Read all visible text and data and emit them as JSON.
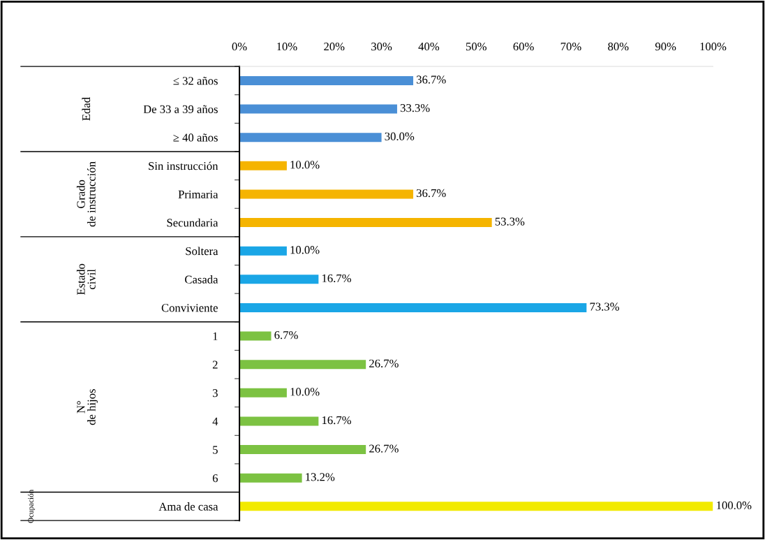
{
  "chart_data": {
    "type": "bar",
    "orientation": "horizontal",
    "categories": [
      "≤ 32 años",
      "De 33 a 39 años",
      "≥ 40 años",
      "Sin instrucción",
      "Primaria",
      "Secundaria",
      "Soltera",
      "Casada",
      "Conviviente",
      "1",
      "2",
      "3",
      "4",
      "5",
      "6",
      "Ama de casa"
    ],
    "values": [
      36.7,
      33.3,
      30.0,
      10.0,
      36.7,
      53.3,
      10.0,
      16.7,
      73.3,
      6.7,
      26.7,
      10.0,
      16.7,
      26.7,
      13.2,
      100.0
    ],
    "value_labels": [
      "36.7%",
      "33.3%",
      "30.0%",
      "10.0%",
      "36.7%",
      "53.3%",
      "10.0%",
      "16.7%",
      "73.3%",
      "6.7%",
      "26.7%",
      "10.0%",
      "16.7%",
      "26.7%",
      "13.2%",
      "100.0%"
    ],
    "colors": [
      "#4a8fd6",
      "#4a8fd6",
      "#4a8fd6",
      "#f5b400",
      "#f5b400",
      "#f5b400",
      "#1aa6e6",
      "#1aa6e6",
      "#1aa6e6",
      "#7cc242",
      "#7cc242",
      "#7cc242",
      "#7cc242",
      "#7cc242",
      "#7cc242",
      "#f2ea00"
    ],
    "annotations": [
      "Edad",
      "Grado de instrucción",
      "Estado civil",
      "N° de hijos",
      "Ocupación"
    ],
    "xlim": [
      0,
      100
    ],
    "xticks": [
      {
        "value": 0,
        "label": "0%"
      },
      {
        "value": 10,
        "label": "10%"
      },
      {
        "value": 20,
        "label": "20%"
      },
      {
        "value": 30,
        "label": "30%"
      },
      {
        "value": 40,
        "label": "40%"
      },
      {
        "value": 50,
        "label": "50%"
      },
      {
        "value": 60,
        "label": "60%"
      },
      {
        "value": 70,
        "label": "70%"
      },
      {
        "value": 80,
        "label": "80%"
      },
      {
        "value": 90,
        "label": "90%"
      },
      {
        "value": 100,
        "label": "100%"
      }
    ],
    "grid": false,
    "legend": false
  }
}
